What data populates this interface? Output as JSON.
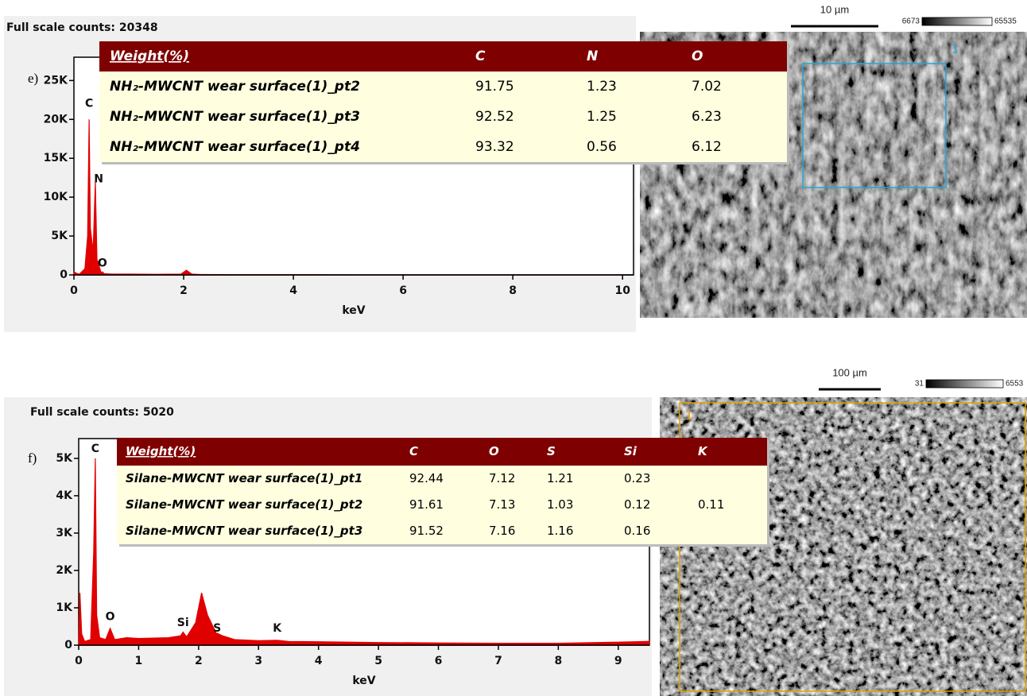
{
  "chart_data": [
    {
      "type": "area",
      "panel_label": "e)",
      "title": "Full scale counts: 20348",
      "x_label": "keV",
      "color": "#e00000",
      "x": [
        0,
        0.05,
        0.1,
        0.2,
        0.25,
        0.277,
        0.3,
        0.35,
        0.39,
        0.42,
        0.5,
        0.52,
        0.55,
        0.7,
        1.0,
        1.5,
        1.95,
        2.05,
        2.15,
        2.3,
        3.0,
        4.0,
        4.4,
        5.0,
        10.2
      ],
      "values": [
        400,
        200,
        100,
        800,
        5000,
        20000,
        6000,
        3000,
        12000,
        2000,
        200,
        400,
        150,
        100,
        100,
        80,
        100,
        600,
        100,
        50,
        30,
        30,
        30,
        0,
        0
      ],
      "xlim": [
        0,
        10.2
      ],
      "xticks": [
        0,
        2,
        4,
        6,
        8,
        10
      ],
      "ylim": [
        0,
        28000
      ],
      "yticks": [
        0,
        {
          "value": 5000,
          "label": "5K"
        },
        {
          "value": 10000,
          "label": "10K"
        },
        {
          "value": 15000,
          "label": "15K"
        },
        {
          "value": 20000,
          "label": "20K"
        },
        {
          "value": 25000,
          "label": "25K"
        }
      ],
      "annotations": [
        {
          "text": "C",
          "x": 0.277,
          "y": 22000
        },
        {
          "text": "N",
          "x": 0.45,
          "y": 12300
        },
        {
          "text": "O",
          "x": 0.52,
          "y": 1500
        }
      ],
      "table": {
        "header_color": "#7f0000",
        "row_color": "#ffffe0",
        "columns": [
          "Weight(%)",
          "C",
          "N",
          "O"
        ],
        "rows": [
          [
            "NH₂-MWCNT wear surface(1)_pt2",
            91.75,
            1.23,
            7.02
          ],
          [
            "NH₂-MWCNT wear surface(1)_pt3",
            92.52,
            1.25,
            6.23
          ],
          [
            "NH₂-MWCNT wear surface(1)_pt4",
            93.32,
            0.56,
            6.12
          ]
        ]
      },
      "image": {
        "scale_bar": "10 µm",
        "colorbar_range": [
          6673,
          65535
        ],
        "region": "1",
        "region_color": "#1fa8d8"
      }
    },
    {
      "type": "area",
      "panel_label": "f)",
      "title": "Full scale counts: 5020",
      "x_label": "keV",
      "color": "#e00000",
      "x": [
        0,
        0.02,
        0.05,
        0.1,
        0.2,
        0.25,
        0.277,
        0.3,
        0.35,
        0.45,
        0.525,
        0.6,
        0.8,
        1.0,
        1.5,
        1.7,
        1.74,
        1.8,
        1.95,
        2.05,
        2.15,
        2.3,
        2.31,
        2.4,
        2.6,
        3.0,
        3.31,
        3.5,
        4,
        5,
        6,
        7,
        8,
        9,
        9.52
      ],
      "values": [
        0,
        1400,
        300,
        100,
        150,
        2500,
        5000,
        800,
        200,
        150,
        450,
        150,
        200,
        180,
        200,
        250,
        350,
        220,
        600,
        1400,
        800,
        300,
        320,
        250,
        150,
        120,
        130,
        100,
        90,
        70,
        60,
        50,
        50,
        80,
        100
      ],
      "xlim": [
        0,
        9.52
      ],
      "xticks": [
        0,
        1,
        2,
        3,
        4,
        5,
        6,
        7,
        8,
        9
      ],
      "ylim": [
        0,
        5530
      ],
      "yticks": [
        0,
        {
          "value": 1000,
          "label": "1K"
        },
        {
          "value": 2000,
          "label": "2K"
        },
        {
          "value": 3000,
          "label": "3K"
        },
        {
          "value": 4000,
          "label": "4K"
        },
        {
          "value": 5000,
          "label": "5K"
        }
      ],
      "annotations": [
        {
          "text": "C",
          "x": 0.277,
          "y": 5250
        },
        {
          "text": "O",
          "x": 0.525,
          "y": 750
        },
        {
          "text": "Si",
          "x": 1.74,
          "y": 600
        },
        {
          "text": "S",
          "x": 2.31,
          "y": 450
        },
        {
          "text": "K",
          "x": 3.31,
          "y": 450
        }
      ],
      "table": {
        "header_color": "#7f0000",
        "row_color": "#ffffe0",
        "columns": [
          "Weight(%)",
          "C",
          "O",
          "S",
          "Si",
          "K"
        ],
        "rows": [
          [
            "Silane-MWCNT wear surface(1)_pt1",
            92.44,
            7.12,
            1.21,
            0.23,
            null
          ],
          [
            "Silane-MWCNT wear surface(1)_pt2",
            91.61,
            7.13,
            1.03,
            0.12,
            0.11
          ],
          [
            "Silane-MWCNT wear surface(1)_pt3",
            91.52,
            7.16,
            1.16,
            0.16,
            null
          ]
        ]
      },
      "image": {
        "scale_bar": "100 µm",
        "colorbar_range": [
          31,
          6553
        ],
        "region": "1",
        "region_color": "#e0a000"
      }
    }
  ]
}
